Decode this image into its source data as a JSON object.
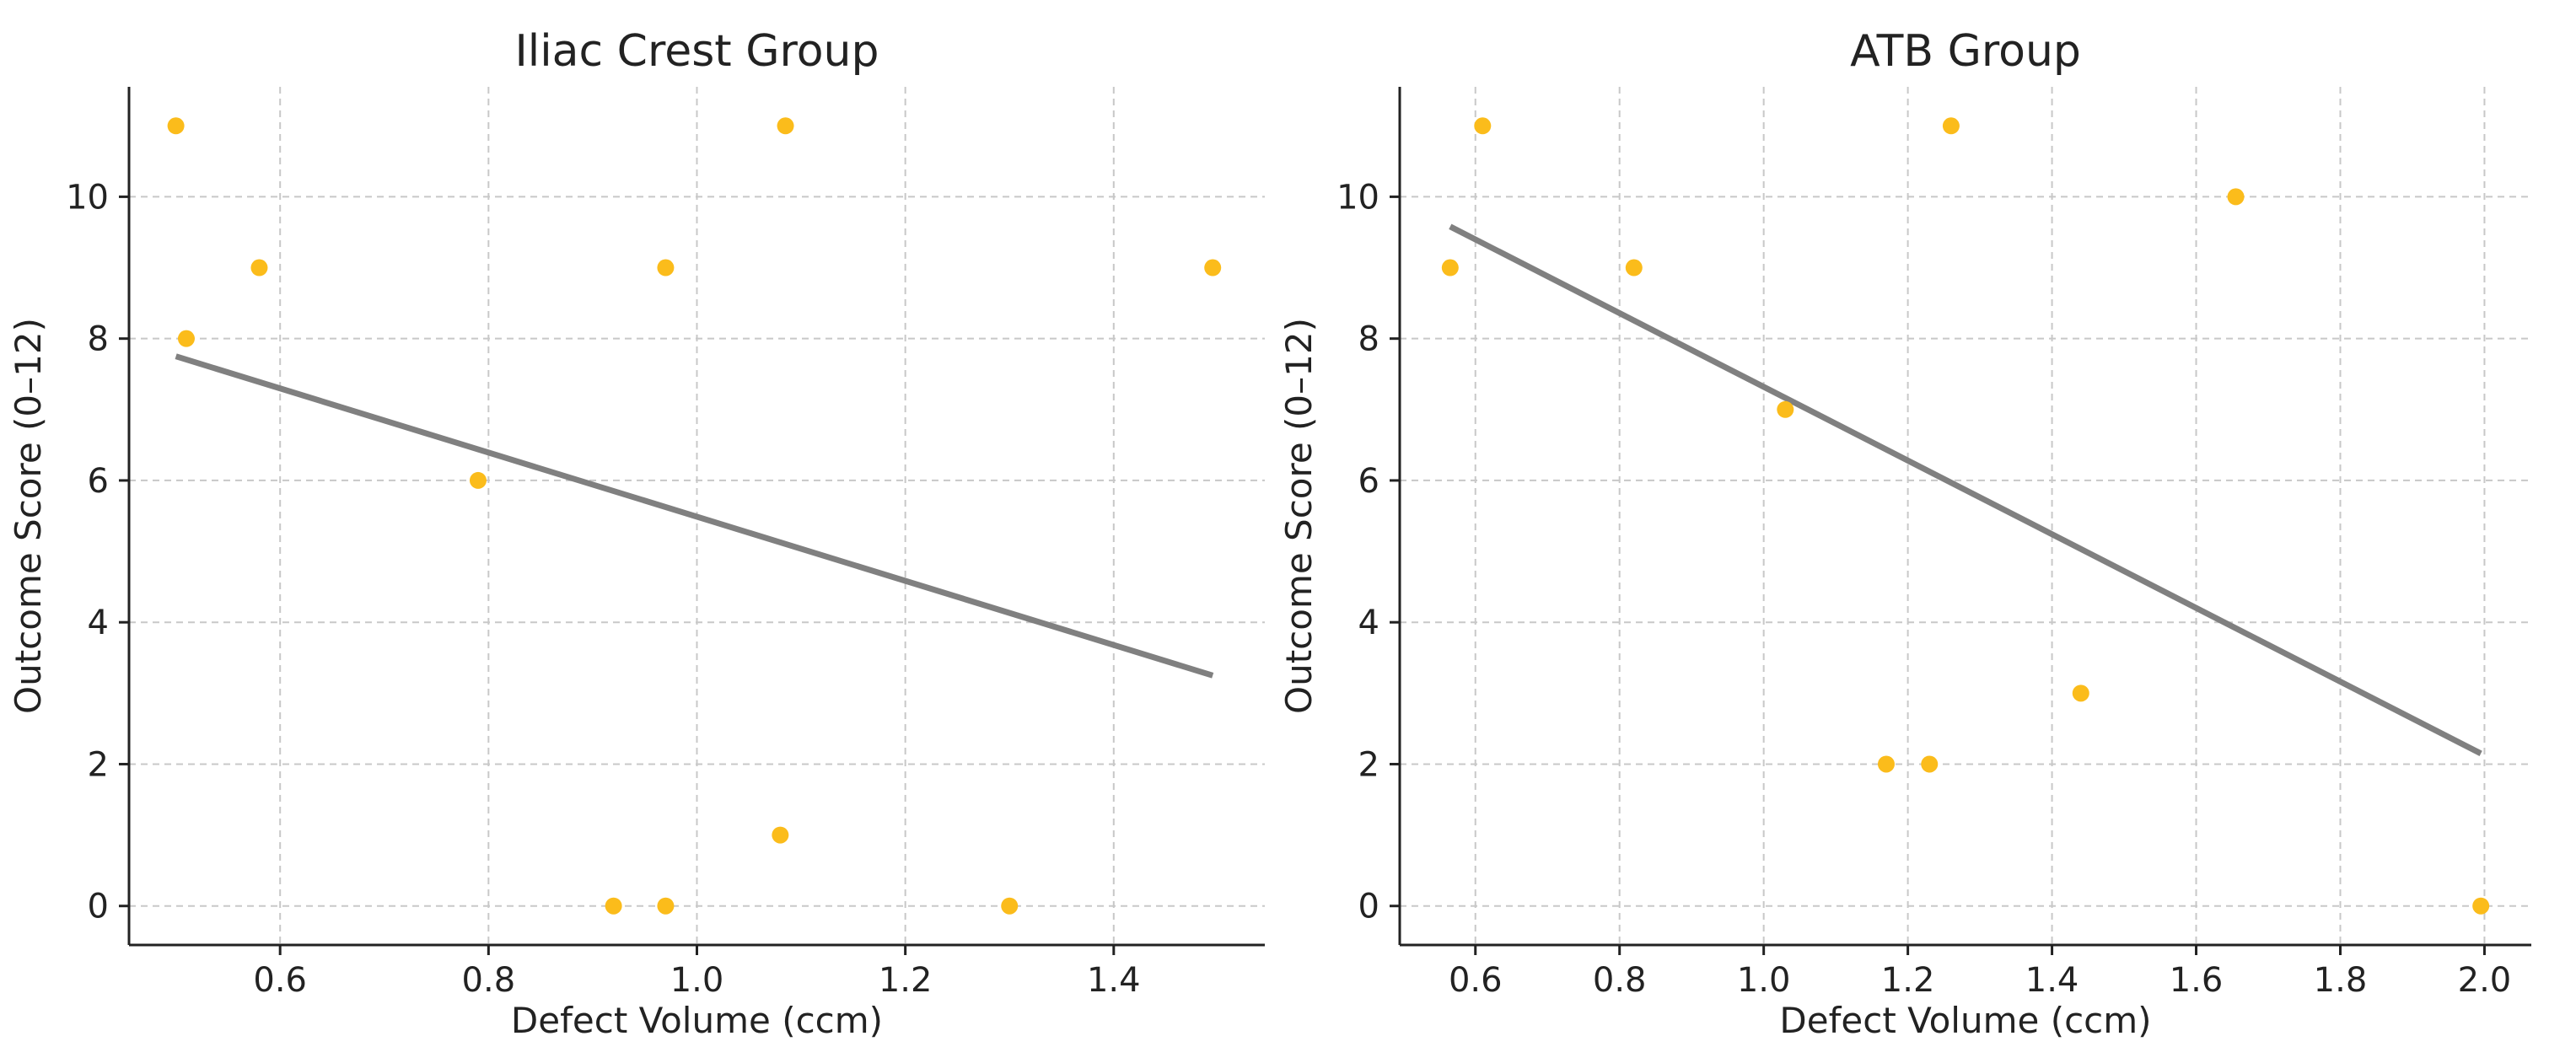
{
  "chart_data": [
    {
      "type": "scatter",
      "title": "Iliac Crest Group",
      "xlabel": "Defect Volume (ccm)",
      "ylabel": "Outcome Score (0–12)",
      "xlim": [
        0.455,
        1.545
      ],
      "ylim": [
        -0.55,
        11.55
      ],
      "xticks": [
        0.6,
        0.8,
        1.0,
        1.2,
        1.4
      ],
      "xtick_labels": [
        "0.6",
        "0.8",
        "1.0",
        "1.2",
        "1.4"
      ],
      "yticks": [
        0,
        2,
        4,
        6,
        8,
        10
      ],
      "ytick_labels": [
        "0",
        "2",
        "4",
        "6",
        "8",
        "10"
      ],
      "grid": true,
      "point_color": "#FBBC1B",
      "line_color": "#808080",
      "points": {
        "x": [
          0.5,
          0.51,
          0.58,
          0.79,
          0.92,
          0.97,
          0.97,
          1.08,
          1.085,
          1.3,
          1.495
        ],
        "y": [
          11,
          8,
          9,
          6,
          0,
          0,
          9,
          1,
          11,
          0,
          9
        ]
      },
      "trendline": {
        "x": [
          0.5,
          1.495
        ],
        "y": [
          7.75,
          3.25
        ]
      }
    },
    {
      "type": "scatter",
      "title": "ATB Group",
      "xlabel": "Defect Volume (ccm)",
      "ylabel": "Outcome Score (0–12)",
      "xlim": [
        0.495,
        2.065
      ],
      "ylim": [
        -0.55,
        11.55
      ],
      "xticks": [
        0.6,
        0.8,
        1.0,
        1.2,
        1.4,
        1.6,
        1.8,
        2.0
      ],
      "xtick_labels": [
        "0.6",
        "0.8",
        "1.0",
        "1.2",
        "1.4",
        "1.6",
        "1.8",
        "2.0"
      ],
      "yticks": [
        0,
        2,
        4,
        6,
        8,
        10
      ],
      "ytick_labels": [
        "0",
        "2",
        "4",
        "6",
        "8",
        "10"
      ],
      "grid": true,
      "point_color": "#FBBC1B",
      "line_color": "#808080",
      "points": {
        "x": [
          0.565,
          0.61,
          0.82,
          1.03,
          1.17,
          1.23,
          1.26,
          1.44,
          1.655,
          1.995
        ],
        "y": [
          9,
          11,
          9,
          7,
          2,
          2,
          11,
          3,
          10,
          0
        ]
      },
      "trendline": {
        "x": [
          0.565,
          1.995
        ],
        "y": [
          9.58,
          2.15
        ]
      }
    }
  ]
}
